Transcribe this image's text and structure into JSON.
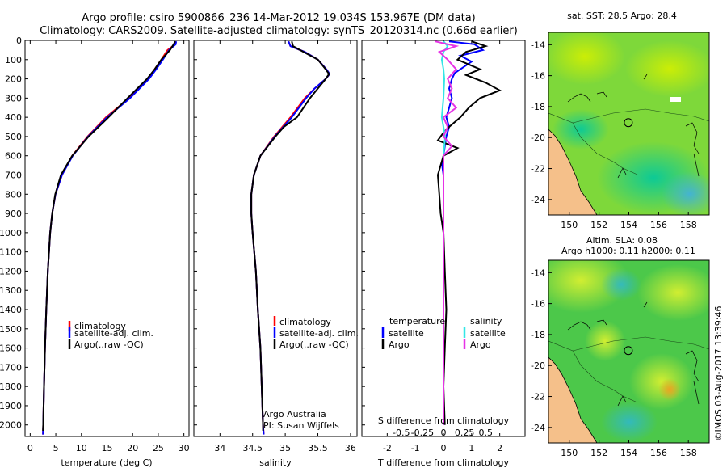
{
  "title": {
    "line1": "Argo profile: csiro 5900866_236 14-Mar-2012 19.034S 153.967E (DM data)",
    "line2": "Climatology: CARS2009. Satellite-adjusted climatology: synTS_20120314.nc (0.66d earlier)"
  },
  "colors": {
    "climatology": "#ff0000",
    "satellite": "#0000ff",
    "argo": "#000000",
    "sal_satellite": "#33e6e6",
    "sal_argo": "#e633e6",
    "land": "#f5c08a"
  },
  "depth_ticks": [
    0,
    100,
    200,
    300,
    400,
    500,
    600,
    700,
    800,
    900,
    1000,
    1100,
    1200,
    1300,
    1400,
    1500,
    1600,
    1700,
    1800,
    1900,
    2000
  ],
  "chart_data": [
    {
      "type": "line",
      "id": "temperature",
      "xlabel": "temperature (deg C)",
      "ylabel": "",
      "xlim": [
        -1,
        31
      ],
      "ylim": [
        2060,
        0
      ],
      "xticks": [
        0,
        5,
        10,
        15,
        20,
        25,
        30
      ],
      "legend": [
        "climatology",
        "satellite-adj. clim.",
        "Argo(..raw -QC)"
      ],
      "series": [
        {
          "name": "climatology",
          "depth": [
            5,
            20,
            50,
            100,
            150,
            200,
            300,
            400,
            500,
            600,
            700,
            800,
            900,
            1000,
            1200,
            1400,
            1600,
            1800,
            2000,
            2050
          ],
          "values": [
            28.4,
            28.3,
            26.8,
            25.6,
            24.3,
            23.0,
            19.3,
            14.8,
            11.2,
            8.2,
            6.2,
            4.95,
            4.3,
            3.9,
            3.45,
            3.15,
            2.9,
            2.7,
            2.55,
            2.5
          ]
        },
        {
          "name": "satellite",
          "depth": [
            5,
            20,
            50,
            100,
            150,
            200,
            300,
            400,
            500,
            600,
            700,
            800,
            900,
            1000,
            1200,
            1400,
            1600,
            1800,
            2000,
            2050
          ],
          "values": [
            28.5,
            28.4,
            27.1,
            25.9,
            24.6,
            23.2,
            19.5,
            15.0,
            11.3,
            8.3,
            6.2,
            4.95,
            4.3,
            3.9,
            3.45,
            3.15,
            2.9,
            2.7,
            2.55,
            2.5
          ]
        },
        {
          "name": "Argo",
          "depth": [
            5,
            20,
            50,
            100,
            150,
            200,
            300,
            400,
            500,
            600,
            700,
            800,
            900,
            1000,
            1200,
            1400,
            1600,
            1800,
            2000,
            2030
          ],
          "values": [
            28.3,
            28.0,
            27.3,
            25.6,
            24.3,
            22.8,
            19.0,
            15.3,
            11.4,
            8.2,
            6.0,
            4.9,
            4.3,
            3.9,
            3.45,
            3.15,
            2.9,
            2.7,
            2.55,
            2.5
          ]
        }
      ]
    },
    {
      "type": "line",
      "id": "salinity",
      "xlabel": "salinity",
      "ylabel": "",
      "xlim": [
        33.6,
        36.1
      ],
      "ylim": [
        2060,
        0
      ],
      "xticks": [
        34,
        34.5,
        35,
        35.5,
        36
      ],
      "legend": [
        "climatology",
        "satellite-adj. clim.",
        "Argo(..raw -QC)"
      ],
      "notes": [
        "Argo Australia",
        "PI: Susan Wijffels"
      ],
      "series": [
        {
          "name": "climatology",
          "depth": [
            5,
            30,
            60,
            100,
            150,
            175,
            200,
            250,
            300,
            400,
            500,
            600,
            700,
            800,
            900,
            1000,
            1200,
            1400,
            1600,
            1800,
            2000,
            2050
          ],
          "values": [
            35.05,
            35.08,
            35.3,
            35.5,
            35.63,
            35.68,
            35.62,
            35.45,
            35.3,
            35.08,
            34.83,
            34.62,
            34.52,
            34.48,
            34.48,
            34.5,
            34.55,
            34.58,
            34.62,
            34.64,
            34.66,
            34.67
          ]
        },
        {
          "name": "satellite",
          "depth": [
            5,
            30,
            60,
            100,
            150,
            175,
            200,
            250,
            300,
            400,
            500,
            600,
            700,
            800,
            900,
            1000,
            1200,
            1400,
            1600,
            1800,
            2000,
            2050
          ],
          "values": [
            35.05,
            35.08,
            35.3,
            35.5,
            35.63,
            35.68,
            35.62,
            35.45,
            35.32,
            35.1,
            34.84,
            34.62,
            34.52,
            34.48,
            34.48,
            34.5,
            34.55,
            34.58,
            34.62,
            34.64,
            34.66,
            34.67
          ]
        },
        {
          "name": "Argo",
          "depth": [
            5,
            30,
            60,
            100,
            150,
            175,
            200,
            250,
            300,
            400,
            450,
            500,
            600,
            700,
            800,
            900,
            1000,
            1200,
            1400,
            1600,
            1800,
            2000,
            2030
          ],
          "values": [
            35.1,
            35.12,
            35.28,
            35.5,
            35.62,
            35.67,
            35.62,
            35.5,
            35.38,
            35.18,
            34.98,
            34.85,
            34.62,
            34.52,
            34.48,
            34.48,
            34.5,
            34.55,
            34.58,
            34.62,
            34.64,
            34.66,
            34.66
          ]
        }
      ]
    },
    {
      "type": "line",
      "id": "difference",
      "xlabel": "T difference from climatology",
      "x2label": "S difference from climatology",
      "xlim": [
        -2.9,
        2.9
      ],
      "ylim": [
        2060,
        0
      ],
      "xticks": [
        -2,
        -1,
        0,
        1,
        2
      ],
      "x2ticks": [
        {
          "label": "-0.5",
          "value": -0.5
        },
        {
          "label": "-0.25",
          "value": -0.25
        },
        {
          "label": "0",
          "value": 0
        },
        {
          "label": "0.25",
          "value": 0.25
        },
        {
          "label": "0.5",
          "value": 0.5
        }
      ],
      "x2scale": 3.0,
      "legend_titles": [
        "temperature",
        "salinity"
      ],
      "legend": [
        "satellite",
        "Argo",
        "satellite",
        "Argo"
      ],
      "series": [
        {
          "name": "T satellite",
          "group": "temperature",
          "depth": [
            5,
            20,
            50,
            80,
            110,
            140,
            170,
            200,
            250,
            300,
            350,
            400,
            450,
            500,
            550,
            600,
            650,
            700,
            800,
            900,
            1000,
            1200,
            1400,
            1600,
            2000
          ],
          "values": [
            0.2,
            1.1,
            1.4,
            0.6,
            1.0,
            0.7,
            0.4,
            0.3,
            0.2,
            0.3,
            0.2,
            0.1,
            0.2,
            0.1,
            0.05,
            0.0,
            -0.05,
            0.0,
            0.0,
            0.0,
            0.0,
            0.0,
            0.0,
            0.0,
            0.0
          ]
        },
        {
          "name": "T Argo",
          "group": "temperature",
          "depth": [
            5,
            30,
            60,
            100,
            150,
            180,
            220,
            260,
            300,
            350,
            400,
            450,
            480,
            520,
            560,
            600,
            650,
            700,
            800,
            900,
            1000,
            1200,
            1400,
            1600,
            1800,
            2000
          ],
          "values": [
            1.0,
            1.5,
            0.8,
            0.5,
            1.3,
            0.8,
            1.5,
            2.0,
            1.3,
            0.9,
            0.6,
            0.2,
            0.0,
            -0.2,
            0.5,
            0.0,
            -0.1,
            -0.2,
            -0.15,
            -0.1,
            0.0,
            0.05,
            0.1,
            0.05,
            0.0,
            0.05
          ]
        },
        {
          "name": "S satellite",
          "group": "salinity",
          "depth": [
            5,
            30,
            60,
            100,
            150,
            200,
            300,
            400,
            500,
            600,
            700,
            800,
            1000,
            1400,
            1800,
            2000
          ],
          "values": [
            0.0,
            0.05,
            0.0,
            -0.02,
            0.0,
            0.01,
            0.0,
            -0.02,
            0.02,
            0.0,
            0.0,
            0.0,
            0.0,
            0.0,
            0.0,
            0.0
          ]
        },
        {
          "name": "S Argo",
          "group": "salinity",
          "depth": [
            5,
            30,
            60,
            100,
            150,
            200,
            250,
            300,
            350,
            400,
            450,
            500,
            550,
            600,
            700,
            800,
            1000,
            1400,
            1800,
            2000
          ],
          "values": [
            -0.1,
            0.15,
            -0.05,
            0.05,
            0.15,
            0.05,
            0.1,
            0.05,
            0.15,
            0.0,
            0.05,
            0.0,
            0.1,
            0.0,
            0.0,
            0.0,
            0.0,
            0.0,
            0.0,
            0.0
          ]
        }
      ]
    }
  ],
  "maps": {
    "sst": {
      "title": "sat. SST: 28.5  Argo: 28.4",
      "yticks": [
        "-14",
        "-16",
        "-18",
        "-20",
        "-22",
        "-24"
      ],
      "xticks": [
        "150",
        "152",
        "154",
        "156",
        "158"
      ],
      "lon_range": [
        148.6,
        159.4
      ],
      "lat_range": [
        -25.0,
        -13.2
      ],
      "float_lon": 153.967,
      "float_lat": -19.034
    },
    "sla": {
      "title1": "Altim. SLA: 0.08",
      "title2": "Argo h1000: 0.11 h2000: 0.11",
      "yticks": [
        "-14",
        "-16",
        "-18",
        "-20",
        "-22",
        "-24"
      ],
      "xticks": [
        "150",
        "152",
        "154",
        "156",
        "158"
      ],
      "lon_range": [
        148.6,
        159.4
      ],
      "lat_range": [
        -25.0,
        -13.2
      ],
      "float_lon": 153.967,
      "float_lat": -19.034
    }
  },
  "side_stamp": "©IMOS 03-Aug-2017 13:39:46"
}
